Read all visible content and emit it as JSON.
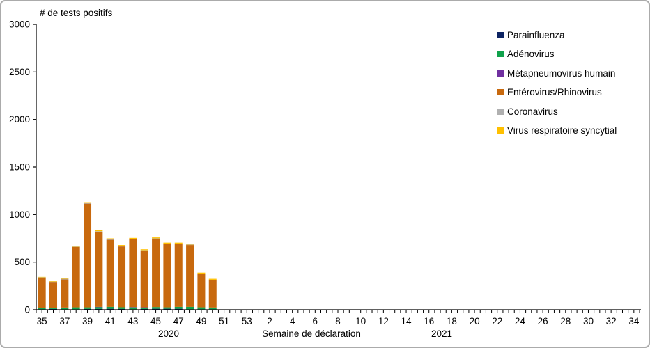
{
  "frame_color": "#ababab",
  "axis_color": "#000000",
  "chart_data": {
    "type": "bar",
    "stacked": true,
    "title": "# de tests positifs",
    "xlabel": "Semaine de déclaration",
    "ylabel": "",
    "grid": false,
    "legend_position": "right-top",
    "ylim": [
      0,
      3000
    ],
    "y_ticks": [
      0,
      500,
      1000,
      1500,
      2000,
      2500,
      3000
    ],
    "x_tick_label_interval": 2,
    "year_labels": [
      {
        "text": "2020"
      },
      {
        "text": "2021"
      }
    ],
    "x_categories": [
      "35",
      "36",
      "37",
      "38",
      "39",
      "40",
      "41",
      "42",
      "43",
      "44",
      "45",
      "46",
      "47",
      "48",
      "49",
      "50",
      "51",
      "52",
      "53",
      "1",
      "2",
      "3",
      "4",
      "5",
      "6",
      "7",
      "8",
      "9",
      "10",
      "11",
      "12",
      "13",
      "14",
      "15",
      "16",
      "17",
      "18",
      "19",
      "20",
      "21",
      "22",
      "23",
      "24",
      "25",
      "26",
      "27",
      "28",
      "29",
      "30",
      "31",
      "32",
      "33",
      "34"
    ],
    "series": [
      {
        "name": "Parainfluenza",
        "color": "#0d2463",
        "values": [
          5,
          8,
          5,
          5,
          8,
          8,
          10,
          8,
          5,
          8,
          10,
          10,
          10,
          5,
          5,
          5,
          0,
          0,
          0,
          0,
          0,
          0,
          0,
          0,
          0,
          0,
          0,
          0,
          0,
          0,
          0,
          0,
          0,
          0,
          0,
          0,
          0,
          0,
          0,
          0,
          0,
          0,
          0,
          0,
          0,
          0,
          0,
          0,
          0,
          0,
          0,
          0,
          0
        ]
      },
      {
        "name": "Adénovirus",
        "color": "#10a24c",
        "values": [
          15,
          12,
          15,
          20,
          17,
          20,
          20,
          18,
          20,
          15,
          18,
          15,
          20,
          25,
          20,
          18,
          0,
          0,
          0,
          0,
          0,
          0,
          0,
          0,
          0,
          0,
          0,
          0,
          0,
          0,
          0,
          0,
          0,
          0,
          0,
          0,
          0,
          0,
          0,
          0,
          0,
          0,
          0,
          0,
          0,
          0,
          0,
          0,
          0,
          0,
          0,
          0,
          0
        ]
      },
      {
        "name": "Métapneumovirus humain",
        "color": "#7030a0",
        "values": [
          2,
          0,
          3,
          0,
          0,
          2,
          0,
          0,
          3,
          2,
          0,
          0,
          0,
          0,
          0,
          0,
          0,
          0,
          0,
          0,
          0,
          0,
          0,
          0,
          0,
          0,
          0,
          0,
          0,
          0,
          0,
          0,
          0,
          0,
          0,
          0,
          0,
          0,
          0,
          0,
          0,
          0,
          0,
          0,
          0,
          0,
          0,
          0,
          0,
          0,
          0,
          0,
          0
        ]
      },
      {
        "name": "Entérovirus/Rhinovirus",
        "color": "#c8690e",
        "values": [
          315,
          272,
          295,
          635,
          1090,
          790,
          705,
          639,
          712,
          595,
          717,
          665,
          660,
          650,
          350,
          287,
          0,
          0,
          0,
          0,
          0,
          0,
          0,
          0,
          0,
          0,
          0,
          0,
          0,
          0,
          0,
          0,
          0,
          0,
          0,
          0,
          0,
          0,
          0,
          0,
          0,
          0,
          0,
          0,
          0,
          0,
          0,
          0,
          0,
          0,
          0,
          0,
          0
        ]
      },
      {
        "name": "Coronavirus",
        "color": "#b0b0b0",
        "values": [
          3,
          3,
          7,
          3,
          5,
          5,
          5,
          5,
          5,
          5,
          5,
          5,
          5,
          5,
          5,
          5,
          0,
          0,
          0,
          0,
          0,
          0,
          0,
          0,
          0,
          0,
          0,
          0,
          0,
          0,
          0,
          0,
          0,
          0,
          0,
          0,
          0,
          0,
          0,
          0,
          0,
          0,
          0,
          0,
          0,
          0,
          0,
          0,
          0,
          0,
          0,
          0,
          0
        ]
      },
      {
        "name": "Virus respiratoire syncytial",
        "color": "#ffc000",
        "values": [
          5,
          5,
          10,
          7,
          10,
          10,
          10,
          10,
          10,
          10,
          10,
          10,
          10,
          10,
          10,
          10,
          0,
          0,
          0,
          0,
          0,
          0,
          0,
          0,
          0,
          0,
          0,
          0,
          0,
          0,
          0,
          0,
          0,
          0,
          0,
          0,
          0,
          0,
          0,
          0,
          0,
          0,
          0,
          0,
          0,
          0,
          0,
          0,
          0,
          0,
          0,
          0,
          0
        ]
      }
    ]
  }
}
